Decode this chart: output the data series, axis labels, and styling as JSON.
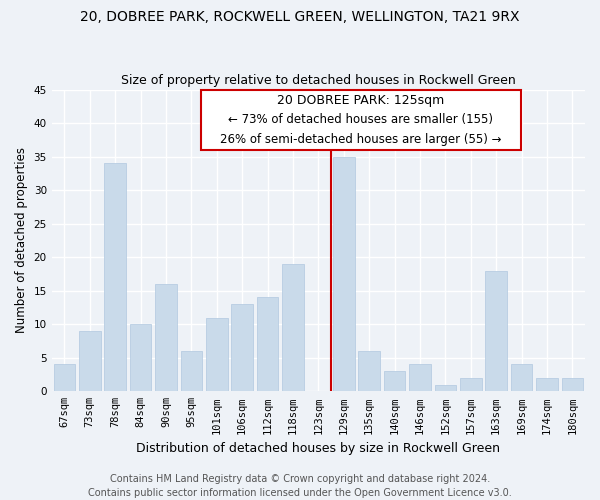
{
  "title": "20, DOBREE PARK, ROCKWELL GREEN, WELLINGTON, TA21 9RX",
  "subtitle": "Size of property relative to detached houses in Rockwell Green",
  "xlabel": "Distribution of detached houses by size in Rockwell Green",
  "ylabel": "Number of detached properties",
  "categories": [
    "67sqm",
    "73sqm",
    "78sqm",
    "84sqm",
    "90sqm",
    "95sqm",
    "101sqm",
    "106sqm",
    "112sqm",
    "118sqm",
    "123sqm",
    "129sqm",
    "135sqm",
    "140sqm",
    "146sqm",
    "152sqm",
    "157sqm",
    "163sqm",
    "169sqm",
    "174sqm",
    "180sqm"
  ],
  "values": [
    4,
    9,
    34,
    10,
    16,
    6,
    11,
    13,
    14,
    19,
    0,
    35,
    6,
    3,
    4,
    1,
    2,
    18,
    4,
    2,
    2
  ],
  "bar_color": "#c9daea",
  "bar_edge_color": "#b0c8df",
  "highlight_line_color": "#cc0000",
  "ylim": [
    0,
    45
  ],
  "yticks": [
    0,
    5,
    10,
    15,
    20,
    25,
    30,
    35,
    40,
    45
  ],
  "annotation_title": "20 DOBREE PARK: 125sqm",
  "annotation_line1": "← 73% of detached houses are smaller (155)",
  "annotation_line2": "26% of semi-detached houses are larger (55) →",
  "annotation_box_color": "#ffffff",
  "annotation_box_edgecolor": "#cc0000",
  "footer_line1": "Contains HM Land Registry data © Crown copyright and database right 2024.",
  "footer_line2": "Contains public sector information licensed under the Open Government Licence v3.0.",
  "background_color": "#eef2f7",
  "grid_color": "#ffffff",
  "title_fontsize": 10,
  "subtitle_fontsize": 9,
  "xlabel_fontsize": 9,
  "ylabel_fontsize": 8.5,
  "tick_fontsize": 7.5,
  "annotation_title_fontsize": 9,
  "annotation_text_fontsize": 8.5,
  "footer_fontsize": 7
}
